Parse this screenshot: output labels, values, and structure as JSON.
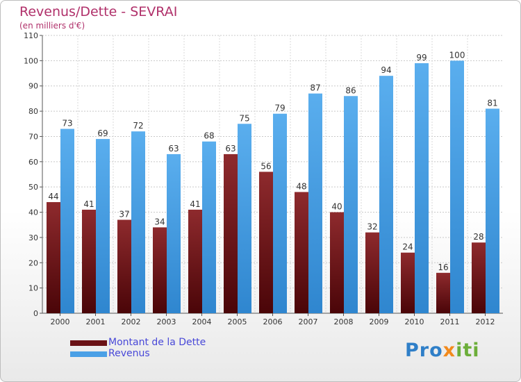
{
  "chart_data": {
    "type": "bar",
    "title": "Revenus/Dette - SEVRAI",
    "subtitle": "(en milliers d'€)",
    "categories": [
      "2000",
      "2001",
      "2002",
      "2003",
      "2004",
      "2005",
      "2006",
      "2007",
      "2008",
      "2009",
      "2010",
      "2011",
      "2012"
    ],
    "series": [
      {
        "name": "Montant de la Dette",
        "values": [
          44,
          41,
          37,
          34,
          41,
          63,
          56,
          48,
          40,
          32,
          24,
          16,
          28
        ],
        "color": "#7a1a1e"
      },
      {
        "name": "Revenus",
        "values": [
          73,
          69,
          72,
          63,
          68,
          75,
          79,
          87,
          86,
          94,
          99,
          100,
          81
        ],
        "color": "#4aa0e6"
      }
    ],
    "ylim": [
      0,
      110
    ],
    "yticks": [
      0,
      10,
      20,
      30,
      40,
      50,
      60,
      70,
      80,
      90,
      100,
      110
    ],
    "grid": true,
    "legend_position": "bottom-left",
    "data_labels": true
  },
  "logo": {
    "part1": "Pro",
    "part2": "x",
    "part3": "iti"
  }
}
